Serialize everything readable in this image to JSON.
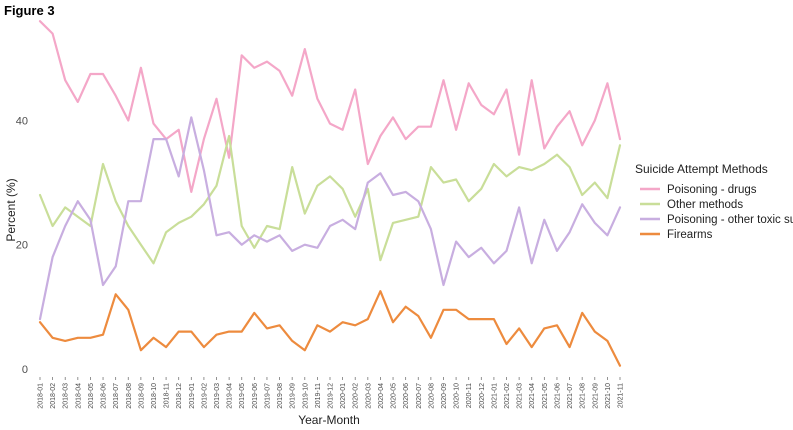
{
  "figure_label": "Figure 3",
  "chart_data": {
    "type": "line",
    "title": "",
    "xlabel": "Year-Month",
    "ylabel": "Percent (%)",
    "ylim": [
      -1,
      57
    ],
    "yticks": [
      0,
      20,
      40
    ],
    "grid": false,
    "legend_title": "Suicide Attempt Methods",
    "legend_position": "right",
    "x": [
      "2018-01",
      "2018-02",
      "2018-03",
      "2018-04",
      "2018-05",
      "2018-06",
      "2018-07",
      "2018-08",
      "2018-09",
      "2018-10",
      "2018-11",
      "2018-12",
      "2019-01",
      "2019-02",
      "2019-03",
      "2019-04",
      "2019-05",
      "2019-06",
      "2019-07",
      "2019-08",
      "2019-09",
      "2019-10",
      "2019-11",
      "2019-12",
      "2020-01",
      "2020-02",
      "2020-03",
      "2020-04",
      "2020-05",
      "2020-06",
      "2020-07",
      "2020-08",
      "2020-09",
      "2020-10",
      "2020-11",
      "2020-12",
      "2021-01",
      "2021-02",
      "2021-03",
      "2021-04",
      "2021-05",
      "2021-06",
      "2021-07",
      "2021-08",
      "2021-09",
      "2021-10",
      "2021-11"
    ],
    "series": [
      {
        "name": "Poisoning - drugs",
        "color": "#f4a7c8",
        "values": [
          56.0,
          54.0,
          46.5,
          43.0,
          47.5,
          47.5,
          44.0,
          40.0,
          48.5,
          39.5,
          37.0,
          38.5,
          28.5,
          37.0,
          43.5,
          34.0,
          50.5,
          48.5,
          49.5,
          48.0,
          44.0,
          51.5,
          43.5,
          39.5,
          38.5,
          45.0,
          33.0,
          37.5,
          40.5,
          37.0,
          39.0,
          39.0,
          46.5,
          38.5,
          46.0,
          42.5,
          41.0,
          45.0,
          34.5,
          46.5,
          35.5,
          39.0,
          41.5,
          36.0,
          40.0,
          46.0,
          37.0
        ]
      },
      {
        "name": "Other methods",
        "color": "#c9de99",
        "values": [
          28.0,
          23.0,
          26.0,
          24.5,
          23.0,
          33.0,
          27.0,
          23.0,
          20.0,
          17.0,
          22.0,
          23.5,
          24.5,
          26.5,
          29.5,
          37.5,
          23.0,
          19.5,
          23.0,
          22.5,
          32.5,
          25.0,
          29.5,
          31.0,
          29.0,
          24.5,
          29.0,
          17.5,
          23.5,
          24.0,
          24.5,
          32.5,
          30.0,
          30.5,
          27.0,
          29.0,
          33.0,
          31.0,
          32.5,
          32.0,
          33.0,
          34.5,
          32.5,
          28.0,
          30.0,
          27.5,
          36.0
        ]
      },
      {
        "name": "Poisoning - other toxic sub",
        "color": "#c8aee0",
        "values": [
          8.0,
          18.0,
          23.0,
          27.0,
          24.0,
          13.5,
          16.5,
          27.0,
          27.0,
          37.0,
          37.0,
          31.0,
          40.5,
          32.0,
          21.5,
          22.0,
          20.0,
          21.5,
          20.5,
          21.5,
          19.0,
          20.0,
          19.5,
          23.0,
          24.0,
          22.5,
          30.0,
          31.5,
          28.0,
          28.5,
          27.0,
          22.5,
          13.5,
          20.5,
          18.0,
          19.5,
          17.0,
          19.0,
          26.0,
          17.0,
          24.0,
          19.0,
          22.0,
          26.5,
          23.5,
          21.5,
          26.0
        ]
      },
      {
        "name": "Firearms",
        "color": "#ed8b3e",
        "values": [
          7.5,
          5.0,
          4.5,
          5.0,
          5.0,
          5.5,
          12.0,
          9.5,
          3.0,
          5.0,
          3.5,
          6.0,
          6.0,
          3.5,
          5.5,
          6.0,
          6.0,
          9.0,
          6.5,
          7.0,
          4.5,
          3.0,
          7.0,
          6.0,
          7.5,
          7.0,
          8.0,
          12.5,
          7.5,
          10.0,
          8.5,
          5.0,
          9.5,
          9.5,
          8.0,
          8.0,
          8.0,
          4.0,
          6.5,
          3.5,
          6.5,
          7.0,
          3.5,
          9.0,
          6.0,
          4.5,
          0.5
        ]
      }
    ]
  }
}
